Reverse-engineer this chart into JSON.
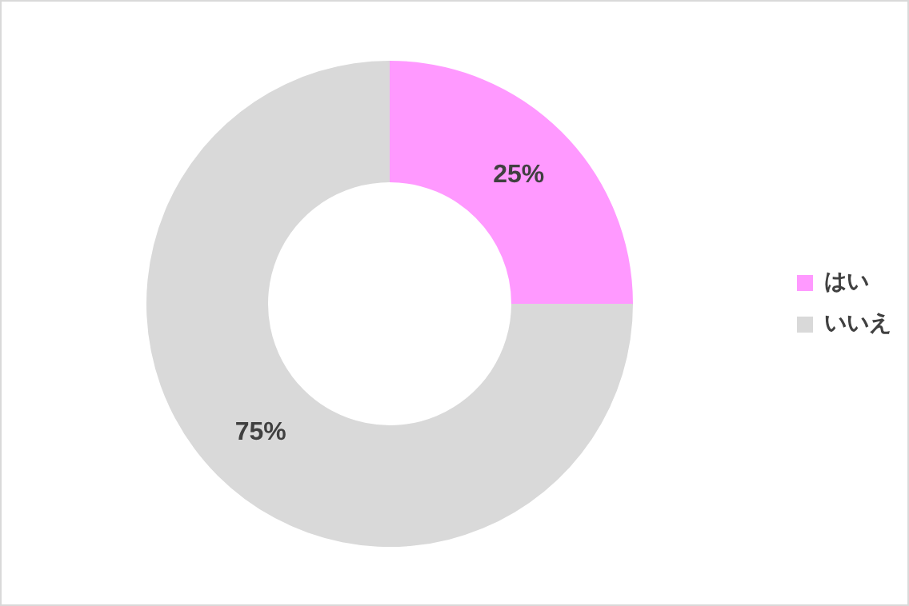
{
  "chart_data": {
    "type": "donut",
    "categories": [
      "はい",
      "いいえ"
    ],
    "values": [
      25,
      75
    ],
    "colors": [
      "#ff99ff",
      "#d9d9d9"
    ],
    "value_labels": [
      "25%",
      "75%"
    ],
    "legend": "right"
  }
}
